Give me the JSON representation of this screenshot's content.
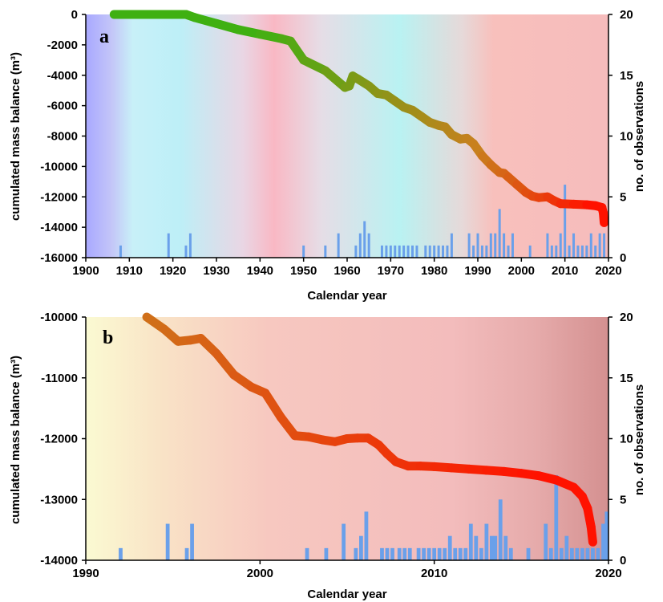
{
  "colors": {
    "obs_bar": "#6aa0ea",
    "curve_start": "#3fb012",
    "curve_mid": "#c8801e",
    "curve_end": "#ff1200"
  },
  "chart_data": [
    {
      "type": "line",
      "panel_label": "a",
      "xlabel": "Calendar year",
      "ylabel": "cumulated mass balance (m³)",
      "y2label": "no. of observations",
      "xlim": [
        1900,
        2020
      ],
      "ylim": [
        -16000,
        0
      ],
      "y2lim": [
        0,
        20
      ],
      "x_ticks": [
        "1900",
        "1910",
        "1920",
        "1930",
        "1940",
        "1950",
        "1960",
        "1970",
        "1980",
        "1990",
        "2000",
        "2010",
        "2020"
      ],
      "y_ticks": [
        "0",
        "-2000",
        "-4000",
        "-6000",
        "-8000",
        "-10000",
        "-12000",
        "-14000",
        "-16000"
      ],
      "y2_ticks": [
        "20",
        "15",
        "10",
        "5",
        "0"
      ],
      "series": [
        {
          "kind": "line",
          "x": [
            1906.5,
            1910,
            1915,
            1920,
            1923,
            1925,
            1930,
            1935,
            1940,
            1945,
            1947,
            1950,
            1955,
            1959.5,
            1960.5,
            1961.3,
            1962.5,
            1965,
            1967,
            1969,
            1971,
            1973,
            1975,
            1977,
            1979,
            1981,
            1982.5,
            1984,
            1986,
            1987.5,
            1989,
            1991,
            1993,
            1995,
            1996,
            1997,
            1999,
            2001,
            2002.5,
            2004,
            2006,
            2007.5,
            2009,
            2012,
            2015,
            2017,
            2018.5,
            2018.8,
            2019
          ],
          "y": [
            0,
            0,
            0,
            0,
            0,
            -200,
            -600,
            -1000,
            -1300,
            -1600,
            -1750,
            -3000,
            -3700,
            -4800,
            -4700,
            -4050,
            -4250,
            -4700,
            -5200,
            -5300,
            -5700,
            -6100,
            -6300,
            -6700,
            -7100,
            -7300,
            -7400,
            -7900,
            -8200,
            -8150,
            -8500,
            -9300,
            -9900,
            -10400,
            -10450,
            -10700,
            -11200,
            -11700,
            -11950,
            -12050,
            -12000,
            -12250,
            -12450,
            -12480,
            -12520,
            -12580,
            -12700,
            -13050,
            -13700
          ]
        },
        {
          "kind": "bar",
          "name_axis": "y2",
          "x": [
            1908,
            1919,
            1923,
            1924,
            1950,
            1955,
            1958,
            1962,
            1963,
            1964,
            1965,
            1968,
            1969,
            1970,
            1971,
            1972,
            1973,
            1974,
            1975,
            1976,
            1978,
            1979,
            1980,
            1981,
            1982,
            1983,
            1984,
            1988,
            1989,
            1990,
            1991,
            1992,
            1993,
            1994,
            1995,
            1996,
            1997,
            1998,
            2002,
            2006,
            2007,
            2008,
            2009,
            2010,
            2011,
            2012,
            2013,
            2014,
            2015,
            2016,
            2017,
            2018,
            2019
          ],
          "values": [
            1,
            2,
            1,
            2,
            1,
            1,
            2,
            1,
            2,
            3,
            2,
            1,
            1,
            1,
            1,
            1,
            1,
            1,
            1,
            1,
            1,
            1,
            1,
            1,
            1,
            1,
            2,
            2,
            1,
            2,
            1,
            1,
            2,
            2,
            4,
            2,
            1,
            2,
            1,
            2,
            1,
            1,
            2,
            6,
            1,
            2,
            1,
            1,
            1,
            2,
            1,
            2,
            2
          ]
        }
      ]
    },
    {
      "type": "line",
      "panel_label": "b",
      "xlabel": "Calendar year",
      "ylabel": "cumulated mass balance (m³)",
      "y2label": "no. of observations",
      "xlim": [
        1990,
        2020
      ],
      "ylim": [
        -14000,
        -10000
      ],
      "y2lim": [
        0,
        20
      ],
      "x_ticks": [
        "1990",
        "2000",
        "2010",
        "2020"
      ],
      "y_ticks": [
        "-10000",
        "-11000",
        "-12000",
        "-13000",
        "-14000"
      ],
      "y2_ticks": [
        "20",
        "15",
        "10",
        "5",
        "0"
      ],
      "series": [
        {
          "kind": "line",
          "x": [
            1993.5,
            1994.5,
            1995.3,
            1996,
            1996.6,
            1997.5,
            1998.5,
            1999.5,
            2000.3,
            2001.2,
            2002,
            2002.8,
            2003.6,
            2004.3,
            2005,
            2005.6,
            2006.2,
            2006.8,
            2007.3,
            2007.8,
            2008.5,
            2009.2,
            2010,
            2011,
            2012,
            2013,
            2014,
            2015,
            2016,
            2017,
            2018,
            2018.5,
            2018.8,
            2019.0,
            2019.1
          ],
          "y": [
            -10000,
            -10200,
            -10400,
            -10380,
            -10350,
            -10600,
            -10950,
            -11150,
            -11250,
            -11650,
            -11950,
            -11970,
            -12020,
            -12050,
            -12000,
            -11990,
            -11990,
            -12100,
            -12250,
            -12380,
            -12450,
            -12450,
            -12460,
            -12480,
            -12500,
            -12520,
            -12540,
            -12570,
            -12610,
            -12680,
            -12800,
            -12950,
            -13150,
            -13450,
            -13700
          ]
        },
        {
          "kind": "bar",
          "name_axis": "y2",
          "x": [
            1992,
            1994.7,
            1995.8,
            1996.1,
            2002.7,
            2003.8,
            2004.8,
            2005.5,
            2005.8,
            2006.1,
            2007,
            2007.3,
            2007.6,
            2008,
            2008.3,
            2008.6,
            2009.1,
            2009.4,
            2009.7,
            2010,
            2010.3,
            2010.6,
            2010.9,
            2011.2,
            2011.5,
            2011.8,
            2012.1,
            2012.4,
            2012.7,
            2013,
            2013.3,
            2013.5,
            2013.8,
            2014.1,
            2014.4,
            2015.4,
            2016.4,
            2016.7,
            2017,
            2017.3,
            2017.6,
            2017.9,
            2018.2,
            2018.5,
            2018.8,
            2019.1,
            2019.4,
            2019.7,
            2019.9
          ],
          "values": [
            1,
            3,
            1,
            3,
            1,
            1,
            3,
            1,
            2,
            4,
            1,
            1,
            1,
            1,
            1,
            1,
            1,
            1,
            1,
            1,
            1,
            1,
            2,
            1,
            1,
            1,
            3,
            2,
            1,
            3,
            2,
            2,
            5,
            2,
            1,
            1,
            3,
            1,
            7,
            1,
            2,
            1,
            1,
            1,
            1,
            1,
            1,
            3,
            4
          ]
        }
      ]
    }
  ]
}
